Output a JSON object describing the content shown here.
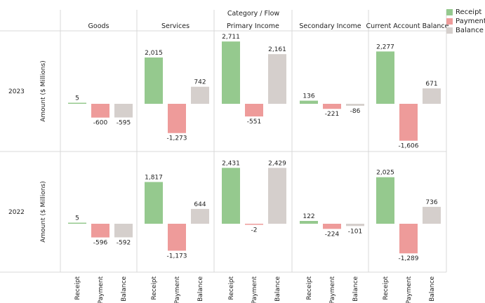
{
  "chart_data": {
    "type": "bar",
    "column_header_title": "Category  /  Flow",
    "ylabel": "Amount ($ Millions)",
    "categories": [
      "Goods",
      "Services",
      "Primary Income",
      "Secondary Income",
      "Current Account Balance"
    ],
    "flows": [
      "Receipt",
      "Payment",
      "Balance"
    ],
    "rows": [
      "2023",
      "2022"
    ],
    "ylim": [
      -1700,
      2800
    ],
    "grid": false,
    "legend_position": "top-right",
    "colors": {
      "Receipt": "#95c98e",
      "Payment": "#ee9b9a",
      "Balance": "#d5cfcc"
    },
    "value_labels": {
      "2023": [
        [
          "5",
          "-600",
          "-595"
        ],
        [
          "2,015",
          "-1,273",
          "742"
        ],
        [
          "2,711",
          "-551",
          "2,161"
        ],
        [
          "136",
          "-221",
          "-86"
        ],
        [
          "2,277",
          "-1,606",
          "671"
        ]
      ],
      "2022": [
        [
          "5",
          "-596",
          "-592"
        ],
        [
          "1,817",
          "-1,173",
          "644"
        ],
        [
          "2,431",
          "-2",
          "2,429"
        ],
        [
          "122",
          "-224",
          "-101"
        ],
        [
          "2,025",
          "-1,289",
          "736"
        ]
      ]
    },
    "series": [
      {
        "year": "2023",
        "values": [
          [
            5,
            -600,
            -595
          ],
          [
            2015,
            -1273,
            742
          ],
          [
            2711,
            -551,
            2161
          ],
          [
            136,
            -221,
            -86
          ],
          [
            2277,
            -1606,
            671
          ]
        ]
      },
      {
        "year": "2022",
        "values": [
          [
            5,
            -596,
            -592
          ],
          [
            1817,
            -1173,
            644
          ],
          [
            2431,
            -2,
            2429
          ],
          [
            122,
            -224,
            -101
          ],
          [
            2025,
            -1289,
            736
          ]
        ]
      }
    ]
  },
  "legend": [
    {
      "label": "Receipt",
      "color": "#95c98e"
    },
    {
      "label": "Payment",
      "color": "#ee9b9a"
    },
    {
      "label": "Balance",
      "color": "#d5cfcc"
    }
  ]
}
